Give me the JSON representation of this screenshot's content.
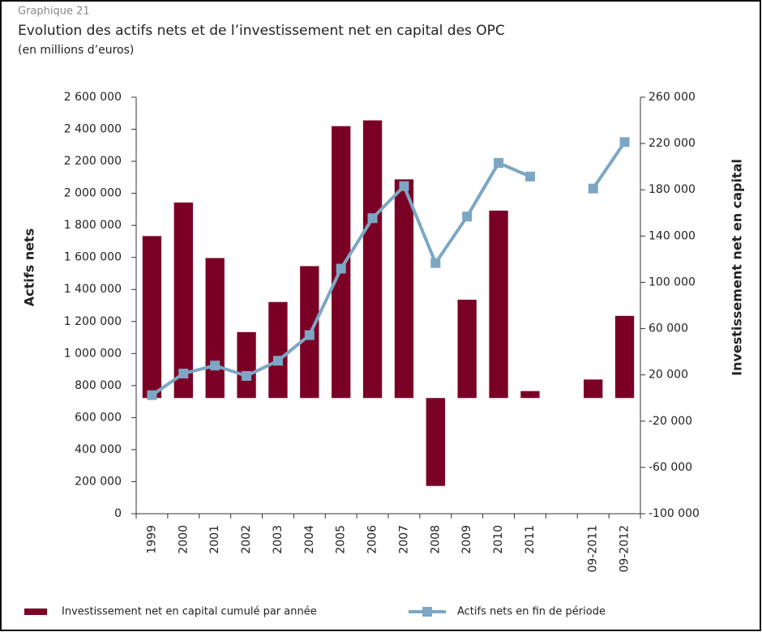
{
  "chart_data": {
    "type": "bar",
    "label": "Graphique 21",
    "title": "Evolution des actifs nets et de l’investissement net en capital des OPC",
    "subtitle": "(en millions d’euros)",
    "ylabel": "Actifs nets",
    "y2label": "Investissement net en capital",
    "categories": [
      "1999",
      "2000",
      "2001",
      "2002",
      "2003",
      "2004",
      "2005",
      "2006",
      "2007",
      "2008",
      "2009",
      "2010",
      "2011",
      null,
      "09-2011",
      "09-2012"
    ],
    "series": [
      {
        "name": "Investissement net en capital cumulé par année",
        "color": "#7b0025",
        "type": "bar",
        "axis": "y2",
        "values": [
          140000,
          169000,
          121000,
          57000,
          83000,
          114000,
          235000,
          240000,
          189000,
          -76000,
          85000,
          162000,
          6000,
          null,
          16000,
          71000
        ]
      },
      {
        "name": "Actifs nets en fin de période",
        "color": "#7ba7c4",
        "type": "line",
        "values": [
          740000,
          875000,
          925000,
          860000,
          955000,
          1115000,
          1530000,
          1845000,
          2045000,
          1565000,
          1855000,
          2190000,
          2105000,
          null,
          2030000,
          2320000
        ]
      }
    ],
    "ylim": [
      0,
      2600000
    ],
    "yticks": [
      0,
      {
        "value": 200000,
        "label": "200 000"
      },
      {
        "value": 400000,
        "label": "400 000"
      },
      {
        "value": 600000,
        "label": "600 000"
      },
      {
        "value": 800000,
        "label": "800 000"
      },
      {
        "value": 1000000,
        "label": "1 000 000"
      },
      {
        "value": 1200000,
        "label": "1 200 000"
      },
      {
        "value": 1400000,
        "label": "1 400 000"
      },
      {
        "value": 1600000,
        "label": "1 600 000"
      },
      {
        "value": 1800000,
        "label": "1 800 000"
      },
      {
        "value": 2000000,
        "label": "2 000 000"
      },
      {
        "value": 2200000,
        "label": "2 200 000"
      },
      {
        "value": 2400000,
        "label": "2 400 000"
      },
      {
        "value": 2600000,
        "label": "2 600 000"
      }
    ],
    "y2lim": [
      -100000,
      260000
    ],
    "y2ticks": [
      {
        "value": -100000,
        "label": "-100 000"
      },
      {
        "value": -60000,
        "label": "-60 000"
      },
      {
        "value": -20000,
        "label": "-20 000"
      },
      {
        "value": 20000,
        "label": "20 000"
      },
      {
        "value": 60000,
        "label": "60 000"
      },
      {
        "value": 100000,
        "label": "100 000"
      },
      {
        "value": 140000,
        "label": "140 000"
      },
      {
        "value": 180000,
        "label": "180 000"
      },
      {
        "value": 220000,
        "label": "220 000"
      },
      {
        "value": 260000,
        "label": "260 000"
      }
    ],
    "grid": false
  }
}
